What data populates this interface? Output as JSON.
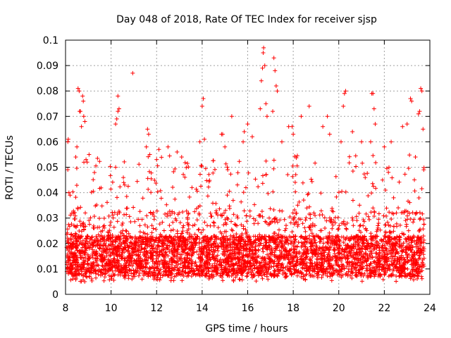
{
  "chart_data": {
    "type": "scatter",
    "title": "Day 048 of 2018, Rate Of TEC Index for receiver sjsp",
    "xlabel": "GPS time / hours",
    "ylabel": "ROTI / TECUs",
    "xlim": [
      8,
      24
    ],
    "ylim": [
      0,
      0.1
    ],
    "xticks": [
      8,
      10,
      12,
      14,
      16,
      18,
      20,
      22,
      24
    ],
    "xtick_labels": [
      "8",
      "10",
      "12",
      "14",
      "16",
      "18",
      "20",
      "22",
      "24"
    ],
    "yticks": [
      0,
      0.01,
      0.02,
      0.03,
      0.04,
      0.05,
      0.06,
      0.07,
      0.08,
      0.09,
      0.1
    ],
    "ytick_labels": [
      "0",
      "0.01",
      "0.02",
      "0.03",
      "0.04",
      "0.05",
      "0.06",
      "0.07",
      "0.08",
      "0.09",
      "0.1"
    ],
    "grid": true,
    "marker": "+",
    "color": "#ff0000",
    "series": [
      {
        "name": "ROTI",
        "x_range": [
          8.05,
          23.75
        ],
        "note_on_dense_points": "Thousands of points; a dense core band between about 0.005 and 0.03 TECU/s across the whole time span. Representative sparse high points below.",
        "points": [
          [
            8.1,
            0.06
          ],
          [
            8.12,
            0.061
          ],
          [
            8.15,
            0.04
          ],
          [
            8.2,
            0.039
          ],
          [
            8.55,
            0.081
          ],
          [
            8.6,
            0.08
          ],
          [
            8.62,
            0.072
          ],
          [
            8.65,
            0.072
          ],
          [
            8.7,
            0.066
          ],
          [
            8.75,
            0.078
          ],
          [
            8.78,
            0.076
          ],
          [
            8.8,
            0.07
          ],
          [
            8.85,
            0.068
          ],
          [
            8.9,
            0.053
          ],
          [
            8.95,
            0.052
          ],
          [
            8.5,
            0.058
          ],
          [
            8.45,
            0.054
          ],
          [
            10.2,
            0.067
          ],
          [
            10.25,
            0.069
          ],
          [
            10.3,
            0.072
          ],
          [
            10.35,
            0.073
          ],
          [
            10.3,
            0.078
          ],
          [
            10.2,
            0.05
          ],
          [
            10.6,
            0.043
          ],
          [
            10.95,
            0.087
          ],
          [
            11.6,
            0.065
          ],
          [
            11.65,
            0.063
          ],
          [
            11.55,
            0.058
          ],
          [
            11.7,
            0.055
          ],
          [
            12.0,
            0.053
          ],
          [
            12.1,
            0.057
          ],
          [
            12.5,
            0.058
          ],
          [
            12.9,
            0.056
          ],
          [
            13.1,
            0.054
          ],
          [
            13.9,
            0.06
          ],
          [
            14.0,
            0.074
          ],
          [
            14.05,
            0.077
          ],
          [
            14.1,
            0.061
          ],
          [
            14.85,
            0.063
          ],
          [
            14.9,
            0.063
          ],
          [
            15.0,
            0.058
          ],
          [
            15.3,
            0.07
          ],
          [
            15.8,
            0.06
          ],
          [
            15.85,
            0.064
          ],
          [
            16.0,
            0.067
          ],
          [
            16.2,
            0.062
          ],
          [
            16.55,
            0.073
          ],
          [
            16.6,
            0.084
          ],
          [
            16.65,
            0.089
          ],
          [
            16.68,
            0.095
          ],
          [
            16.7,
            0.097
          ],
          [
            16.75,
            0.09
          ],
          [
            16.8,
            0.075
          ],
          [
            16.85,
            0.07
          ],
          [
            17.15,
            0.093
          ],
          [
            17.2,
            0.088
          ],
          [
            17.25,
            0.082
          ],
          [
            17.3,
            0.08
          ],
          [
            17.1,
            0.072
          ],
          [
            17.5,
            0.06
          ],
          [
            17.8,
            0.066
          ],
          [
            17.95,
            0.066
          ],
          [
            18.0,
            0.063
          ],
          [
            18.35,
            0.07
          ],
          [
            18.7,
            0.074
          ],
          [
            19.3,
            0.066
          ],
          [
            19.5,
            0.07
          ],
          [
            19.6,
            0.063
          ],
          [
            20.2,
            0.074
          ],
          [
            20.25,
            0.079
          ],
          [
            20.3,
            0.08
          ],
          [
            20.1,
            0.06
          ],
          [
            20.6,
            0.064
          ],
          [
            21.0,
            0.06
          ],
          [
            21.45,
            0.079
          ],
          [
            21.5,
            0.079
          ],
          [
            21.55,
            0.073
          ],
          [
            21.6,
            0.067
          ],
          [
            21.4,
            0.06
          ],
          [
            22.0,
            0.058
          ],
          [
            22.3,
            0.06
          ],
          [
            22.8,
            0.066
          ],
          [
            23.0,
            0.067
          ],
          [
            23.15,
            0.077
          ],
          [
            23.2,
            0.076
          ],
          [
            23.5,
            0.071
          ],
          [
            23.55,
            0.072
          ],
          [
            23.6,
            0.081
          ],
          [
            23.65,
            0.08
          ],
          [
            23.7,
            0.065
          ]
        ]
      }
    ]
  }
}
